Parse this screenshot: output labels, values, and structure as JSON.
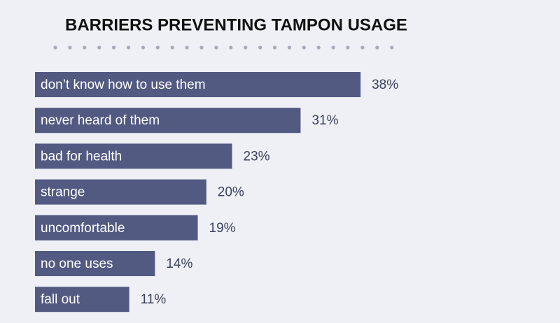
{
  "chart_data": {
    "type": "bar",
    "orientation": "horizontal",
    "title": "BARRIERS PREVENTING TAMPON USAGE",
    "categories": [
      "don’t know how to use them",
      "never heard of them",
      "bad for health",
      "strange",
      "uncomfortable",
      "no one uses",
      "fall out"
    ],
    "values": [
      38,
      31,
      23,
      20,
      19,
      14,
      11
    ],
    "value_labels": [
      "38%",
      "31%",
      "23%",
      "20%",
      "19%",
      "14%",
      "11%"
    ],
    "color": "#525a82"
  }
}
